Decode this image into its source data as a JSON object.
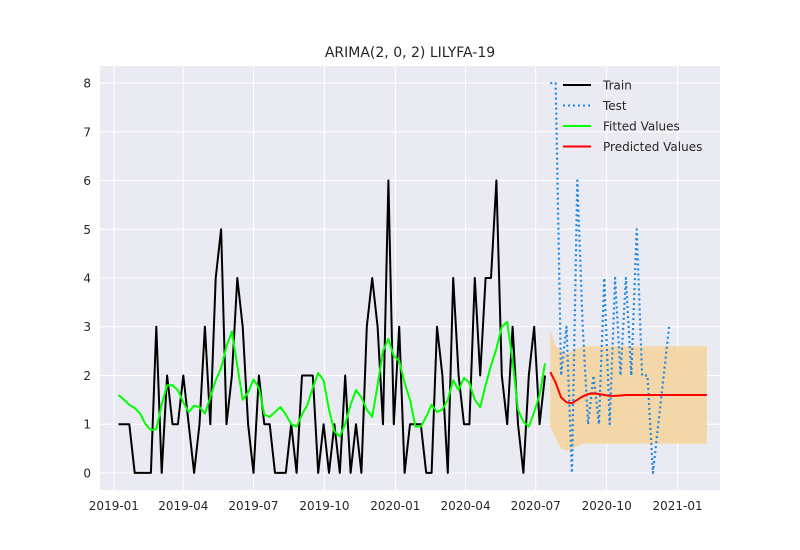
{
  "chart_data": {
    "type": "line",
    "title": "ARIMA(2, 0, 2) LILYFA-19",
    "xlabel": "",
    "ylabel": "",
    "x_axis": "date",
    "xlim": [
      "2018-12-14",
      "2021-02-25"
    ],
    "ylim": [
      -0.35,
      8.35
    ],
    "x_ticks": [
      "2019-01-01",
      "2019-04-01",
      "2019-07-01",
      "2019-10-01",
      "2020-01-01",
      "2020-04-01",
      "2020-07-01",
      "2020-10-01",
      "2021-01-01"
    ],
    "x_tick_labels": [
      "2019-01",
      "2019-04",
      "2019-07",
      "2019-10",
      "2020-01",
      "2020-04",
      "2020-07",
      "2020-10",
      "2021-01"
    ],
    "y_ticks": [
      0,
      1,
      2,
      3,
      4,
      5,
      6,
      7,
      8
    ],
    "y_tick_labels": [
      "0",
      "1",
      "2",
      "3",
      "4",
      "5",
      "6",
      "7",
      "8"
    ],
    "grid": true,
    "legend_position": "top-right",
    "colors": {
      "train": "#000000",
      "test": "#1e88e5",
      "fitted": "#00ff00",
      "predicted": "#ff0000",
      "confidence_band": "#f5d5a0",
      "plot_background": "#eaeaf2",
      "grid": "#ffffff"
    },
    "series": [
      {
        "name": "Train",
        "style": "solid",
        "color": "#000000",
        "points": [
          [
            "2019-01-07",
            1
          ],
          [
            "2019-01-14",
            1
          ],
          [
            "2019-01-21",
            1
          ],
          [
            "2019-01-28",
            0
          ],
          [
            "2019-02-04",
            0
          ],
          [
            "2019-02-11",
            0
          ],
          [
            "2019-02-18",
            0
          ],
          [
            "2019-02-25",
            3
          ],
          [
            "2019-03-04",
            0
          ],
          [
            "2019-03-11",
            2
          ],
          [
            "2019-03-18",
            1
          ],
          [
            "2019-03-25",
            1
          ],
          [
            "2019-04-01",
            2
          ],
          [
            "2019-04-08",
            1
          ],
          [
            "2019-04-15",
            0
          ],
          [
            "2019-04-22",
            1
          ],
          [
            "2019-04-29",
            3
          ],
          [
            "2019-05-06",
            1
          ],
          [
            "2019-05-13",
            4
          ],
          [
            "2019-05-20",
            5
          ],
          [
            "2019-05-27",
            1
          ],
          [
            "2019-06-03",
            2
          ],
          [
            "2019-06-10",
            4
          ],
          [
            "2019-06-17",
            3
          ],
          [
            "2019-06-24",
            1
          ],
          [
            "2019-07-01",
            0
          ],
          [
            "2019-07-08",
            2
          ],
          [
            "2019-07-15",
            1
          ],
          [
            "2019-07-22",
            1
          ],
          [
            "2019-07-29",
            0
          ],
          [
            "2019-08-05",
            0
          ],
          [
            "2019-08-12",
            0
          ],
          [
            "2019-08-19",
            1
          ],
          [
            "2019-08-26",
            0
          ],
          [
            "2019-09-02",
            2
          ],
          [
            "2019-09-09",
            2
          ],
          [
            "2019-09-16",
            2
          ],
          [
            "2019-09-23",
            0
          ],
          [
            "2019-09-30",
            1
          ],
          [
            "2019-10-07",
            0
          ],
          [
            "2019-10-14",
            1
          ],
          [
            "2019-10-21",
            0
          ],
          [
            "2019-10-28",
            2
          ],
          [
            "2019-11-04",
            0
          ],
          [
            "2019-11-11",
            1
          ],
          [
            "2019-11-18",
            0
          ],
          [
            "2019-11-25",
            3
          ],
          [
            "2019-12-02",
            4
          ],
          [
            "2019-12-09",
            3
          ],
          [
            "2019-12-16",
            1
          ],
          [
            "2019-12-23",
            6
          ],
          [
            "2019-12-30",
            1
          ],
          [
            "2020-01-06",
            3
          ],
          [
            "2020-01-13",
            0
          ],
          [
            "2020-01-20",
            1
          ],
          [
            "2020-01-27",
            1
          ],
          [
            "2020-02-03",
            1
          ],
          [
            "2020-02-10",
            0
          ],
          [
            "2020-02-17",
            0
          ],
          [
            "2020-02-24",
            3
          ],
          [
            "2020-03-02",
            2
          ],
          [
            "2020-03-09",
            0
          ],
          [
            "2020-03-16",
            4
          ],
          [
            "2020-03-23",
            2
          ],
          [
            "2020-03-30",
            1
          ],
          [
            "2020-04-06",
            1
          ],
          [
            "2020-04-13",
            4
          ],
          [
            "2020-04-20",
            2
          ],
          [
            "2020-04-27",
            4
          ],
          [
            "2020-05-04",
            4
          ],
          [
            "2020-05-11",
            6
          ],
          [
            "2020-05-18",
            2
          ],
          [
            "2020-05-25",
            1
          ],
          [
            "2020-06-01",
            3
          ],
          [
            "2020-06-08",
            1
          ],
          [
            "2020-06-15",
            0
          ],
          [
            "2020-06-22",
            2
          ],
          [
            "2020-06-29",
            3
          ],
          [
            "2020-07-06",
            1
          ],
          [
            "2020-07-13",
            2
          ]
        ]
      },
      {
        "name": "Test",
        "style": "dotted",
        "color": "#1e88e5",
        "points": [
          [
            "2020-07-20",
            8
          ],
          [
            "2020-07-27",
            8
          ],
          [
            "2020-08-03",
            2
          ],
          [
            "2020-08-10",
            3
          ],
          [
            "2020-08-17",
            0
          ],
          [
            "2020-08-24",
            6
          ],
          [
            "2020-08-31",
            3
          ],
          [
            "2020-09-07",
            1
          ],
          [
            "2020-09-14",
            2
          ],
          [
            "2020-09-21",
            1
          ],
          [
            "2020-09-28",
            4
          ],
          [
            "2020-10-05",
            1
          ],
          [
            "2020-10-12",
            4
          ],
          [
            "2020-10-19",
            2
          ],
          [
            "2020-10-26",
            4
          ],
          [
            "2020-11-02",
            2
          ],
          [
            "2020-11-09",
            5
          ],
          [
            "2020-11-16",
            2
          ],
          [
            "2020-11-23",
            2
          ],
          [
            "2020-11-30",
            0
          ],
          [
            "2020-12-07",
            1
          ],
          [
            "2020-12-14",
            2
          ],
          [
            "2020-12-21",
            3
          ]
        ]
      },
      {
        "name": "Fitted Values",
        "style": "solid",
        "color": "#00ff00",
        "points": [
          [
            "2019-01-07",
            1.6
          ],
          [
            "2019-01-14",
            1.5
          ],
          [
            "2019-01-21",
            1.4
          ],
          [
            "2019-01-28",
            1.33
          ],
          [
            "2019-02-04",
            1.22
          ],
          [
            "2019-02-11",
            1.0
          ],
          [
            "2019-02-18",
            0.88
          ],
          [
            "2019-02-25",
            0.9
          ],
          [
            "2019-03-04",
            1.4
          ],
          [
            "2019-03-11",
            1.8
          ],
          [
            "2019-03-18",
            1.8
          ],
          [
            "2019-03-25",
            1.7
          ],
          [
            "2019-04-01",
            1.45
          ],
          [
            "2019-04-08",
            1.25
          ],
          [
            "2019-04-15",
            1.38
          ],
          [
            "2019-04-22",
            1.35
          ],
          [
            "2019-04-29",
            1.22
          ],
          [
            "2019-05-06",
            1.55
          ],
          [
            "2019-05-13",
            1.9
          ],
          [
            "2019-05-20",
            2.15
          ],
          [
            "2019-05-27",
            2.6
          ],
          [
            "2019-06-03",
            2.9
          ],
          [
            "2019-06-10",
            2.2
          ],
          [
            "2019-06-17",
            1.5
          ],
          [
            "2019-06-24",
            1.65
          ],
          [
            "2019-07-01",
            1.92
          ],
          [
            "2019-07-08",
            1.75
          ],
          [
            "2019-07-15",
            1.2
          ],
          [
            "2019-07-22",
            1.15
          ],
          [
            "2019-07-29",
            1.25
          ],
          [
            "2019-08-05",
            1.35
          ],
          [
            "2019-08-12",
            1.2
          ],
          [
            "2019-08-19",
            1.0
          ],
          [
            "2019-08-26",
            0.95
          ],
          [
            "2019-09-02",
            1.2
          ],
          [
            "2019-09-09",
            1.4
          ],
          [
            "2019-09-16",
            1.75
          ],
          [
            "2019-09-23",
            2.05
          ],
          [
            "2019-09-30",
            1.9
          ],
          [
            "2019-10-07",
            1.3
          ],
          [
            "2019-10-14",
            0.85
          ],
          [
            "2019-10-21",
            0.75
          ],
          [
            "2019-10-28",
            1.0
          ],
          [
            "2019-11-04",
            1.4
          ],
          [
            "2019-11-11",
            1.7
          ],
          [
            "2019-11-18",
            1.55
          ],
          [
            "2019-11-25",
            1.3
          ],
          [
            "2019-12-02",
            1.15
          ],
          [
            "2019-12-09",
            1.8
          ],
          [
            "2019-12-16",
            2.5
          ],
          [
            "2019-12-23",
            2.75
          ],
          [
            "2019-12-30",
            2.4
          ],
          [
            "2020-01-06",
            2.3
          ],
          [
            "2020-01-13",
            1.85
          ],
          [
            "2020-01-20",
            1.5
          ],
          [
            "2020-01-27",
            0.95
          ],
          [
            "2020-02-03",
            0.95
          ],
          [
            "2020-02-10",
            1.15
          ],
          [
            "2020-02-17",
            1.4
          ],
          [
            "2020-02-24",
            1.25
          ],
          [
            "2020-03-02",
            1.3
          ],
          [
            "2020-03-09",
            1.5
          ],
          [
            "2020-03-16",
            1.9
          ],
          [
            "2020-03-23",
            1.7
          ],
          [
            "2020-03-30",
            1.95
          ],
          [
            "2020-04-06",
            1.85
          ],
          [
            "2020-04-13",
            1.5
          ],
          [
            "2020-04-20",
            1.35
          ],
          [
            "2020-04-27",
            1.8
          ],
          [
            "2020-05-04",
            2.2
          ],
          [
            "2020-05-11",
            2.55
          ],
          [
            "2020-05-18",
            3.0
          ],
          [
            "2020-05-25",
            3.1
          ],
          [
            "2020-06-01",
            2.3
          ],
          [
            "2020-06-08",
            1.3
          ],
          [
            "2020-06-15",
            1.05
          ],
          [
            "2020-06-22",
            0.95
          ],
          [
            "2020-06-29",
            1.25
          ],
          [
            "2020-07-06",
            1.6
          ],
          [
            "2020-07-13",
            2.25
          ]
        ]
      },
      {
        "name": "Predicted Values",
        "style": "solid",
        "color": "#ff0000",
        "points": [
          [
            "2020-07-20",
            2.07
          ],
          [
            "2020-07-27",
            1.85
          ],
          [
            "2020-08-03",
            1.55
          ],
          [
            "2020-08-10",
            1.45
          ],
          [
            "2020-08-17",
            1.43
          ],
          [
            "2020-08-24",
            1.5
          ],
          [
            "2020-08-31",
            1.57
          ],
          [
            "2020-09-07",
            1.62
          ],
          [
            "2020-09-14",
            1.63
          ],
          [
            "2020-09-21",
            1.62
          ],
          [
            "2020-09-28",
            1.6
          ],
          [
            "2020-10-05",
            1.58
          ],
          [
            "2020-10-12",
            1.58
          ],
          [
            "2020-10-19",
            1.59
          ],
          [
            "2020-10-26",
            1.6
          ],
          [
            "2020-11-02",
            1.6
          ],
          [
            "2020-11-09",
            1.6
          ],
          [
            "2020-11-16",
            1.6
          ],
          [
            "2020-11-23",
            1.6
          ],
          [
            "2020-11-30",
            1.6
          ],
          [
            "2020-12-07",
            1.6
          ],
          [
            "2020-12-14",
            1.6
          ],
          [
            "2020-12-21",
            1.6
          ],
          [
            "2020-12-28",
            1.6
          ],
          [
            "2021-01-04",
            1.6
          ],
          [
            "2021-01-11",
            1.6
          ],
          [
            "2021-01-18",
            1.6
          ],
          [
            "2021-01-25",
            1.6
          ],
          [
            "2021-02-01",
            1.6
          ],
          [
            "2021-02-08",
            1.6
          ]
        ]
      }
    ],
    "confidence_band": {
      "color": "#f5d5a0",
      "points": [
        [
          "2020-07-20",
          0.95,
          2.95
        ],
        [
          "2020-07-27",
          0.7,
          2.6
        ],
        [
          "2020-08-03",
          0.5,
          2.5
        ],
        [
          "2020-08-10",
          0.45,
          2.45
        ],
        [
          "2020-08-17",
          0.5,
          2.5
        ],
        [
          "2020-08-24",
          0.55,
          2.55
        ],
        [
          "2020-08-31",
          0.6,
          2.6
        ],
        [
          "2020-09-07",
          0.6,
          2.6
        ],
        [
          "2020-09-14",
          0.6,
          2.6
        ],
        [
          "2020-09-21",
          0.6,
          2.6
        ],
        [
          "2020-09-28",
          0.6,
          2.6
        ],
        [
          "2020-10-05",
          0.6,
          2.6
        ],
        [
          "2020-10-12",
          0.6,
          2.6
        ],
        [
          "2020-10-19",
          0.6,
          2.6
        ],
        [
          "2020-10-26",
          0.6,
          2.6
        ],
        [
          "2020-11-02",
          0.6,
          2.6
        ],
        [
          "2020-11-09",
          0.6,
          2.6
        ],
        [
          "2020-11-16",
          0.6,
          2.6
        ],
        [
          "2020-11-23",
          0.6,
          2.6
        ],
        [
          "2020-11-30",
          0.6,
          2.6
        ],
        [
          "2020-12-07",
          0.6,
          2.6
        ],
        [
          "2020-12-14",
          0.6,
          2.6
        ],
        [
          "2020-12-21",
          0.6,
          2.6
        ],
        [
          "2020-12-28",
          0.6,
          2.6
        ],
        [
          "2021-01-04",
          0.6,
          2.6
        ],
        [
          "2021-01-11",
          0.6,
          2.6
        ],
        [
          "2021-01-18",
          0.6,
          2.6
        ],
        [
          "2021-01-25",
          0.6,
          2.6
        ],
        [
          "2021-02-01",
          0.6,
          2.6
        ],
        [
          "2021-02-08",
          0.6,
          2.6
        ]
      ]
    }
  }
}
